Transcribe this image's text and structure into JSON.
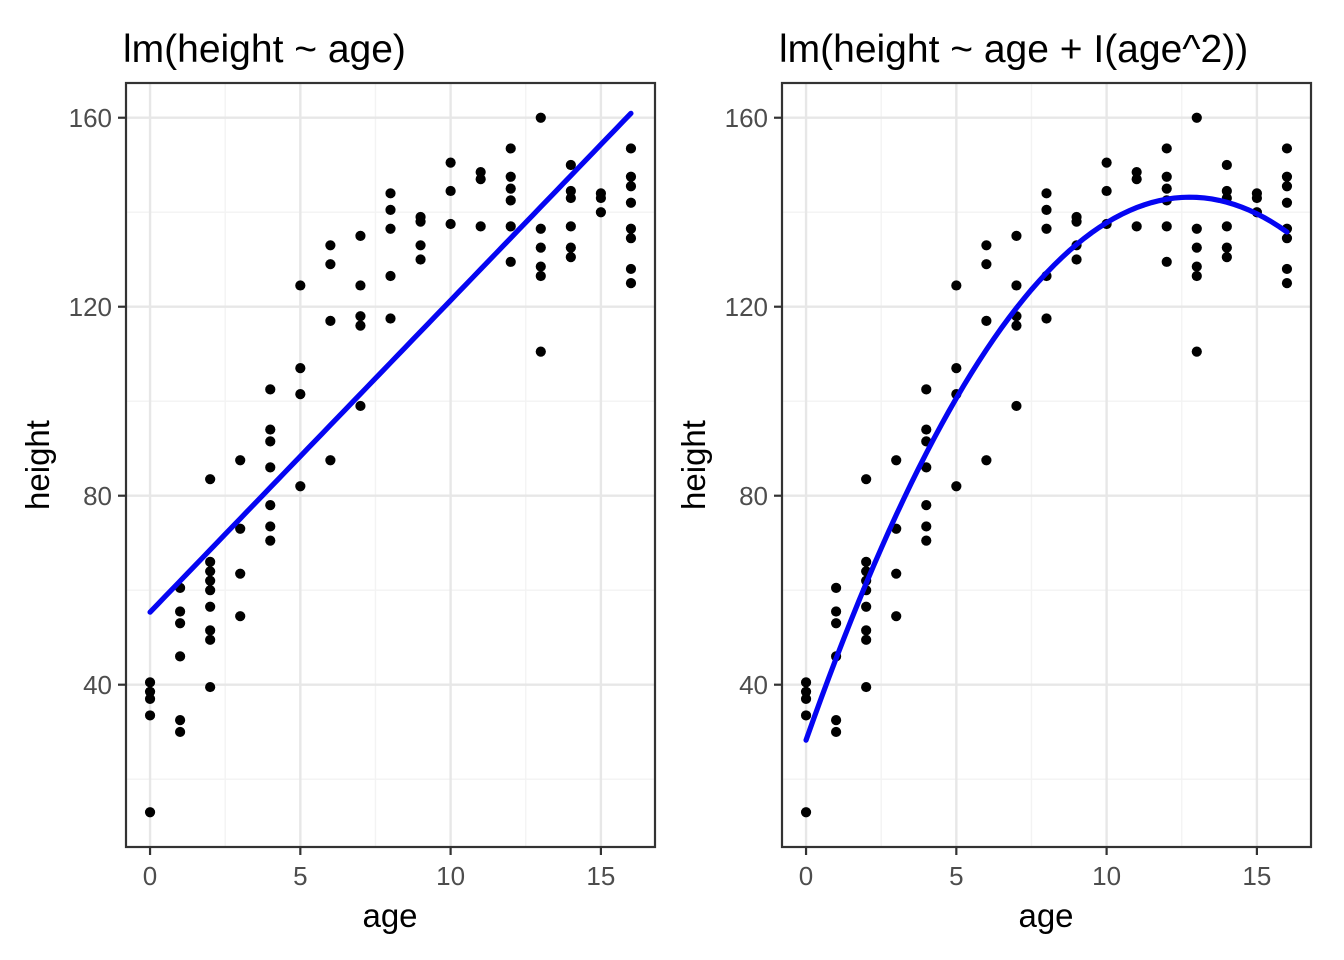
{
  "figure": {
    "background": "#ffffff"
  },
  "colors": {
    "fit_line": "#0505f2",
    "point": "#000000",
    "grid_major": "#e7e7e7",
    "grid_minor": "#f3f3f3",
    "panel_border": "#333333",
    "tick_mark": "#333333",
    "tick_label": "#4d4d4d",
    "title_text": "#000000"
  },
  "chart_data": [
    {
      "type": "scatter",
      "title": "lm(height ~ age)",
      "xlabel": "age",
      "ylabel": "height",
      "x_ticks": [
        0,
        5,
        10,
        15
      ],
      "x_minor_ticks": [
        2.5,
        7.5,
        12.5
      ],
      "y_ticks": [
        40,
        80,
        120,
        160
      ],
      "y_minor_ticks": [
        20,
        60,
        100,
        140
      ],
      "xlim": [
        -0.8,
        16.8
      ],
      "ylim": [
        5.65,
        167.35
      ],
      "grid": true,
      "legend": "none",
      "fit": {
        "type": "linear",
        "color_name": "blue",
        "x_range": [
          0,
          16
        ]
      },
      "points": [
        [
          0,
          40.5
        ],
        [
          0,
          38.5
        ],
        [
          0,
          37
        ],
        [
          0,
          33.5
        ],
        [
          0,
          13
        ],
        [
          1,
          60.5
        ],
        [
          1,
          55.5
        ],
        [
          1,
          53
        ],
        [
          1,
          46
        ],
        [
          1,
          32.5
        ],
        [
          1,
          30
        ],
        [
          2,
          83.5
        ],
        [
          2,
          66
        ],
        [
          2,
          64
        ],
        [
          2,
          62
        ],
        [
          2,
          60
        ],
        [
          2,
          56.5
        ],
        [
          2,
          51.5
        ],
        [
          2,
          49.5
        ],
        [
          2,
          39.5
        ],
        [
          3,
          87.5
        ],
        [
          3,
          73
        ],
        [
          3,
          63.5
        ],
        [
          3,
          54.5
        ],
        [
          4,
          102.5
        ],
        [
          4,
          94
        ],
        [
          4,
          91.5
        ],
        [
          4,
          86
        ],
        [
          4,
          78
        ],
        [
          4,
          73.5
        ],
        [
          4,
          70.5
        ],
        [
          5,
          124.5
        ],
        [
          5,
          107
        ],
        [
          5,
          101.5
        ],
        [
          5,
          82
        ],
        [
          6,
          133
        ],
        [
          6,
          129
        ],
        [
          6,
          117
        ],
        [
          6,
          87.5
        ],
        [
          7,
          135
        ],
        [
          7,
          124.5
        ],
        [
          7,
          118
        ],
        [
          7,
          116
        ],
        [
          7,
          99
        ],
        [
          8,
          144
        ],
        [
          8,
          140.5
        ],
        [
          8,
          136.5
        ],
        [
          8,
          126.5
        ],
        [
          8,
          117.5
        ],
        [
          9,
          139
        ],
        [
          9,
          138
        ],
        [
          9,
          133
        ],
        [
          9,
          130
        ],
        [
          10,
          150.5
        ],
        [
          10,
          144.5
        ],
        [
          10,
          137.5
        ],
        [
          11,
          148.5
        ],
        [
          11,
          147
        ],
        [
          11,
          137
        ],
        [
          12,
          153.5
        ],
        [
          12,
          147.5
        ],
        [
          12,
          145
        ],
        [
          12,
          142.5
        ],
        [
          12,
          137
        ],
        [
          12,
          129.5
        ],
        [
          13,
          160
        ],
        [
          13,
          136.5
        ],
        [
          13,
          132.5
        ],
        [
          13,
          128.5
        ],
        [
          13,
          126.5
        ],
        [
          13,
          110.5
        ],
        [
          14,
          150
        ],
        [
          14,
          144.5
        ],
        [
          14,
          143
        ],
        [
          14,
          137
        ],
        [
          14,
          132.5
        ],
        [
          14,
          130.5
        ],
        [
          15,
          144
        ],
        [
          15,
          143
        ],
        [
          15,
          140
        ],
        [
          16,
          153.5
        ],
        [
          16,
          147.5
        ],
        [
          16,
          145.5
        ],
        [
          16,
          142
        ],
        [
          16,
          136.5
        ],
        [
          16,
          134.5
        ],
        [
          16,
          128
        ],
        [
          16,
          125
        ]
      ]
    },
    {
      "type": "scatter",
      "title": "lm(height ~ age + I(age^2))",
      "xlabel": "age",
      "ylabel": "height",
      "x_ticks": [
        0,
        5,
        10,
        15
      ],
      "x_minor_ticks": [
        2.5,
        7.5,
        12.5
      ],
      "y_ticks": [
        40,
        80,
        120,
        160
      ],
      "y_minor_ticks": [
        20,
        60,
        100,
        140
      ],
      "xlim": [
        -0.8,
        16.8
      ],
      "ylim": [
        5.65,
        167.35
      ],
      "grid": true,
      "legend": "none",
      "fit": {
        "type": "quadratic",
        "color_name": "blue",
        "x_range": [
          0,
          16
        ]
      },
      "points": [
        [
          0,
          40.5
        ],
        [
          0,
          38.5
        ],
        [
          0,
          37
        ],
        [
          0,
          33.5
        ],
        [
          0,
          13
        ],
        [
          1,
          60.5
        ],
        [
          1,
          55.5
        ],
        [
          1,
          53
        ],
        [
          1,
          46
        ],
        [
          1,
          32.5
        ],
        [
          1,
          30
        ],
        [
          2,
          83.5
        ],
        [
          2,
          66
        ],
        [
          2,
          64
        ],
        [
          2,
          62
        ],
        [
          2,
          60
        ],
        [
          2,
          56.5
        ],
        [
          2,
          51.5
        ],
        [
          2,
          49.5
        ],
        [
          2,
          39.5
        ],
        [
          3,
          87.5
        ],
        [
          3,
          73
        ],
        [
          3,
          63.5
        ],
        [
          3,
          54.5
        ],
        [
          4,
          102.5
        ],
        [
          4,
          94
        ],
        [
          4,
          91.5
        ],
        [
          4,
          86
        ],
        [
          4,
          78
        ],
        [
          4,
          73.5
        ],
        [
          4,
          70.5
        ],
        [
          5,
          124.5
        ],
        [
          5,
          107
        ],
        [
          5,
          101.5
        ],
        [
          5,
          82
        ],
        [
          6,
          133
        ],
        [
          6,
          129
        ],
        [
          6,
          117
        ],
        [
          6,
          87.5
        ],
        [
          7,
          135
        ],
        [
          7,
          124.5
        ],
        [
          7,
          118
        ],
        [
          7,
          116
        ],
        [
          7,
          99
        ],
        [
          8,
          144
        ],
        [
          8,
          140.5
        ],
        [
          8,
          136.5
        ],
        [
          8,
          126.5
        ],
        [
          8,
          117.5
        ],
        [
          9,
          139
        ],
        [
          9,
          138
        ],
        [
          9,
          133
        ],
        [
          9,
          130
        ],
        [
          10,
          150.5
        ],
        [
          10,
          144.5
        ],
        [
          10,
          137.5
        ],
        [
          11,
          148.5
        ],
        [
          11,
          147
        ],
        [
          11,
          137
        ],
        [
          12,
          153.5
        ],
        [
          12,
          147.5
        ],
        [
          12,
          145
        ],
        [
          12,
          142.5
        ],
        [
          12,
          137
        ],
        [
          12,
          129.5
        ],
        [
          13,
          160
        ],
        [
          13,
          136.5
        ],
        [
          13,
          132.5
        ],
        [
          13,
          128.5
        ],
        [
          13,
          126.5
        ],
        [
          13,
          110.5
        ],
        [
          14,
          150
        ],
        [
          14,
          144.5
        ],
        [
          14,
          143
        ],
        [
          14,
          137
        ],
        [
          14,
          132.5
        ],
        [
          14,
          130.5
        ],
        [
          15,
          144
        ],
        [
          15,
          143
        ],
        [
          15,
          140
        ],
        [
          16,
          153.5
        ],
        [
          16,
          147.5
        ],
        [
          16,
          145.5
        ],
        [
          16,
          142
        ],
        [
          16,
          136.5
        ],
        [
          16,
          134.5
        ],
        [
          16,
          128
        ],
        [
          16,
          125
        ]
      ]
    }
  ]
}
